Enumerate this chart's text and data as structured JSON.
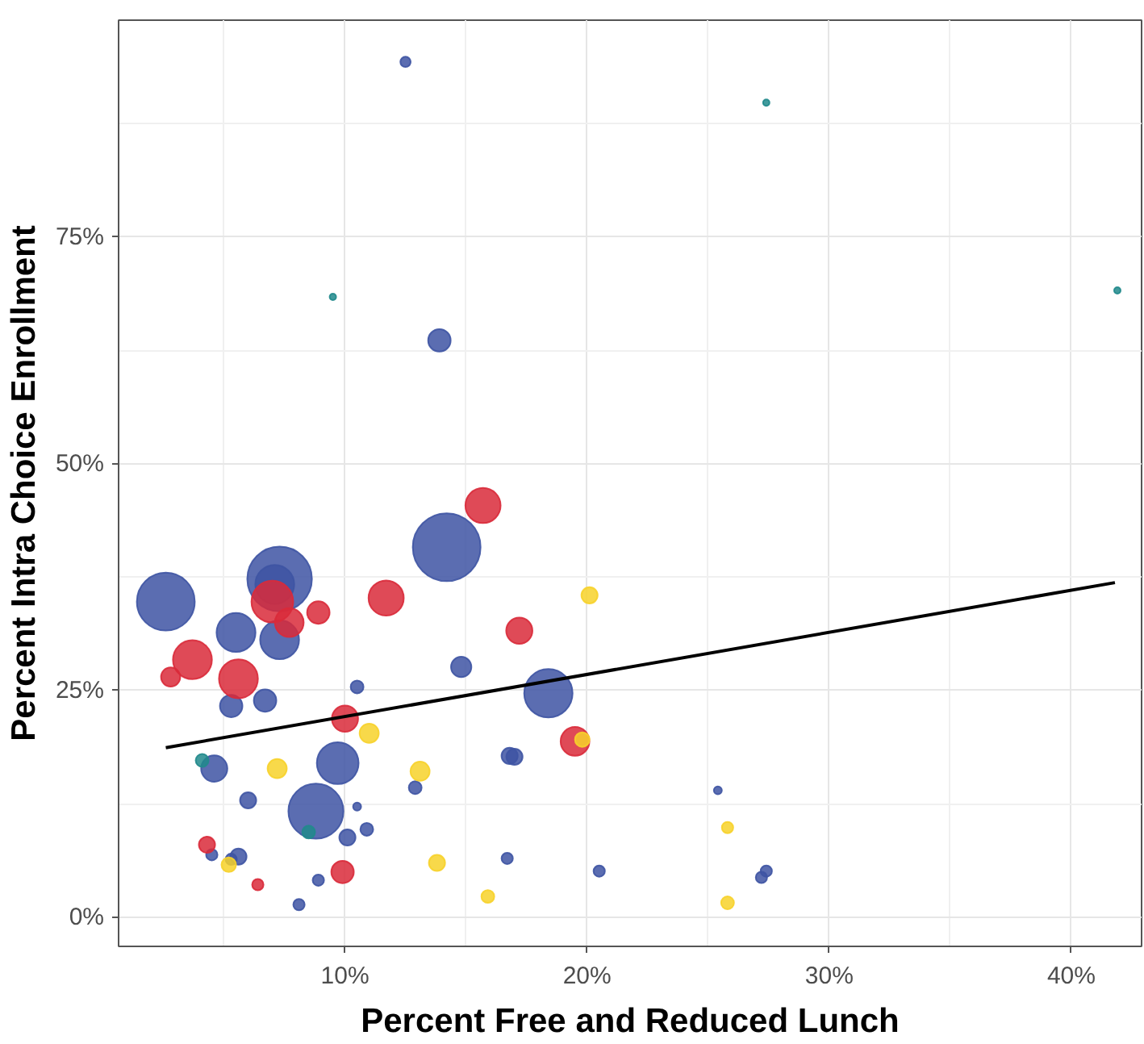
{
  "chart_data": {
    "type": "bubble",
    "xlabel": "Percent Free and Reduced Lunch",
    "ylabel": "Percent Intra Choice Enrollment",
    "xlim": [
      0.65,
      42.9
    ],
    "ylim": [
      -3.2,
      98.9
    ],
    "xticks": [
      {
        "value": 10,
        "label": "10%"
      },
      {
        "value": 20,
        "label": "20%"
      },
      {
        "value": 30,
        "label": "30%"
      },
      {
        "value": 40,
        "label": "40%"
      }
    ],
    "yticks": [
      {
        "value": 0,
        "label": "0%"
      },
      {
        "value": 25,
        "label": "25%"
      },
      {
        "value": 50,
        "label": "50%"
      },
      {
        "value": 75,
        "label": "75%"
      }
    ],
    "grid": true,
    "series": [
      {
        "color": "#3e54a3",
        "x": [
          2.6,
          7.3,
          7.1,
          5.5,
          7.3,
          14.2,
          14.8,
          18.4,
          10.5,
          5.3,
          6.7,
          4.6,
          9.7,
          8.8,
          12.9,
          6.0,
          10.5,
          10.1,
          10.9,
          5.6,
          4.5,
          5.3,
          8.9,
          8.1,
          16.8,
          17.0,
          16.7,
          20.5,
          25.4,
          27.4,
          27.2,
          12.5,
          13.9
        ],
        "values": [
          34.8,
          37.3,
          36.7,
          31.4,
          30.6,
          40.8,
          27.6,
          24.7,
          25.4,
          23.3,
          23.9,
          16.4,
          17.0,
          11.7,
          14.3,
          12.9,
          12.2,
          8.8,
          9.7,
          6.7,
          6.9,
          6.4,
          4.1,
          1.4,
          17.8,
          17.7,
          6.5,
          5.1,
          14.0,
          5.1,
          4.4,
          94.3,
          63.6
        ],
        "sizes": [
          0.73,
          0.91,
          0.33,
          0.33,
          0.33,
          1,
          0.09,
          0.51,
          0.036,
          0.11,
          0.11,
          0.15,
          0.38,
          0.66,
          0.036,
          0.057,
          0.014,
          0.057,
          0.036,
          0.057,
          0.028,
          0.028,
          0.028,
          0.028,
          0.057,
          0.057,
          0.028,
          0.028,
          0.014,
          0.028,
          0.028,
          0.023,
          0.11
        ]
      },
      {
        "color": "#218a8c",
        "x": [
          9.5,
          27.4,
          41.9,
          4.1,
          8.5
        ],
        "values": [
          68.4,
          89.8,
          69.1,
          17.3,
          9.4
        ],
        "sizes": [
          0.009,
          0.009,
          0.009,
          0.036,
          0.036
        ]
      },
      {
        "color": "#d92a3a",
        "x": [
          15.7,
          7.0,
          7.7,
          8.9,
          11.7,
          3.7,
          2.8,
          5.6,
          17.2,
          10.0,
          19.5,
          4.3,
          9.9,
          6.4
        ],
        "values": [
          45.4,
          34.8,
          32.5,
          33.6,
          35.2,
          28.4,
          26.5,
          26.3,
          31.6,
          21.9,
          19.4,
          8.0,
          5.0,
          3.6
        ],
        "sizes": [
          0.27,
          0.38,
          0.18,
          0.11,
          0.27,
          0.33,
          0.08,
          0.33,
          0.15,
          0.15,
          0.18,
          0.057,
          0.11,
          0.028
        ]
      },
      {
        "color": "#f7d22a",
        "x": [
          20.1,
          11.0,
          7.2,
          13.1,
          19.8,
          5.2,
          13.8,
          15.9,
          25.8,
          25.8
        ],
        "values": [
          35.5,
          20.3,
          16.4,
          16.1,
          19.6,
          5.8,
          6.0,
          2.3,
          9.9,
          1.6
        ],
        "sizes": [
          0.057,
          0.08,
          0.08,
          0.08,
          0.046,
          0.046,
          0.057,
          0.036,
          0.028,
          0.036
        ]
      },
      {
        "type": "line",
        "color": "#000000",
        "x": [
          2.6,
          41.8
        ],
        "values": [
          18.7,
          36.9
        ]
      }
    ]
  }
}
